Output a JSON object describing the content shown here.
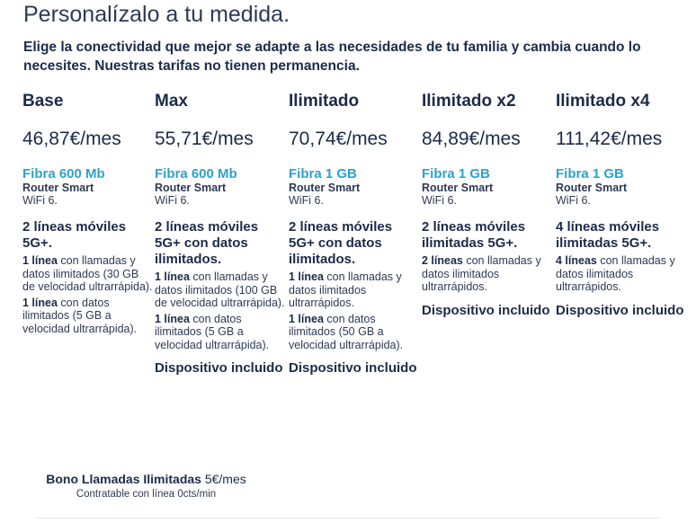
{
  "header": {
    "title": "Personalízalo a tu medida.",
    "intro": "Elige la conectividad que mejor se adapte a las necesidades de tu familia y cambia cuando lo necesites. Nuestras tarifas no tienen permanencia."
  },
  "plans": [
    {
      "name": "Base",
      "price": "46,87€/mes",
      "fiber": "Fibra 600 Mb",
      "router": "Router Smart",
      "router_sub": "WiFi 6.",
      "mobile_title": "2 líneas móviles 5G+.",
      "details": [
        {
          "bold": "1 línea",
          "text": " con llamadas y datos ilimitados (30 GB de velocidad ultrarrápida)."
        },
        {
          "bold": "1 línea",
          "text": " con datos ilimitados (5 GB a velocidad ultrarrápida)."
        }
      ],
      "device": ""
    },
    {
      "name": "Max",
      "price": "55,71€/mes",
      "fiber": "Fibra 600 Mb",
      "router": "Router Smart",
      "router_sub": "WiFi 6.",
      "mobile_title": "2 líneas móviles 5G+ con datos ilimitados.",
      "details": [
        {
          "bold": "1 línea",
          "text": " con llamadas y datos ilimitados (100 GB de velocidad ultrarrápida)."
        },
        {
          "bold": "1 línea",
          "text": " con datos ilimitados (5 GB a velocidad ultrarrápida)."
        }
      ],
      "device": "Dispositivo incluido"
    },
    {
      "name": "Ilimitado",
      "price": "70,74€/mes",
      "fiber": "Fibra 1 GB",
      "router": "Router Smart",
      "router_sub": "WiFi 6.",
      "mobile_title": "2 líneas móviles 5G+ con datos ilimitados.",
      "details": [
        {
          "bold": "1 línea",
          "text": " con llamadas y datos ilimitados ultrarrápidos."
        },
        {
          "bold": "1 línea",
          "text": " con datos ilimitados (50 GB a velocidad ultrarrápida)."
        }
      ],
      "device": "Dispositivo incluido"
    },
    {
      "name": "Ilimitado x2",
      "price": "84,89€/mes",
      "fiber": "Fibra 1 GB",
      "router": "Router Smart",
      "router_sub": "WiFi 6.",
      "mobile_title": "2 líneas móviles ilimitadas 5G+.",
      "details": [
        {
          "bold": "2 líneas",
          "text": " con llamadas y datos ilimitados ultrarrápidos."
        }
      ],
      "device": "Dispositivo incluido"
    },
    {
      "name": "Ilimitado x4",
      "price": "111,42€/mes",
      "fiber": "Fibra 1 GB",
      "router": "Router Smart",
      "router_sub": "WiFi 6.",
      "mobile_title": "4 líneas móviles ilimitadas 5G+.",
      "details": [
        {
          "bold": "4 líneas",
          "text": " con llamadas y datos ilimitados ultrarrápidos."
        }
      ],
      "device": "Dispositivo incluido"
    }
  ],
  "bono": {
    "label": "Bono Llamadas Ilimitadas",
    "price": " 5€/mes",
    "note": "Contratable con línea 0cts/min"
  }
}
